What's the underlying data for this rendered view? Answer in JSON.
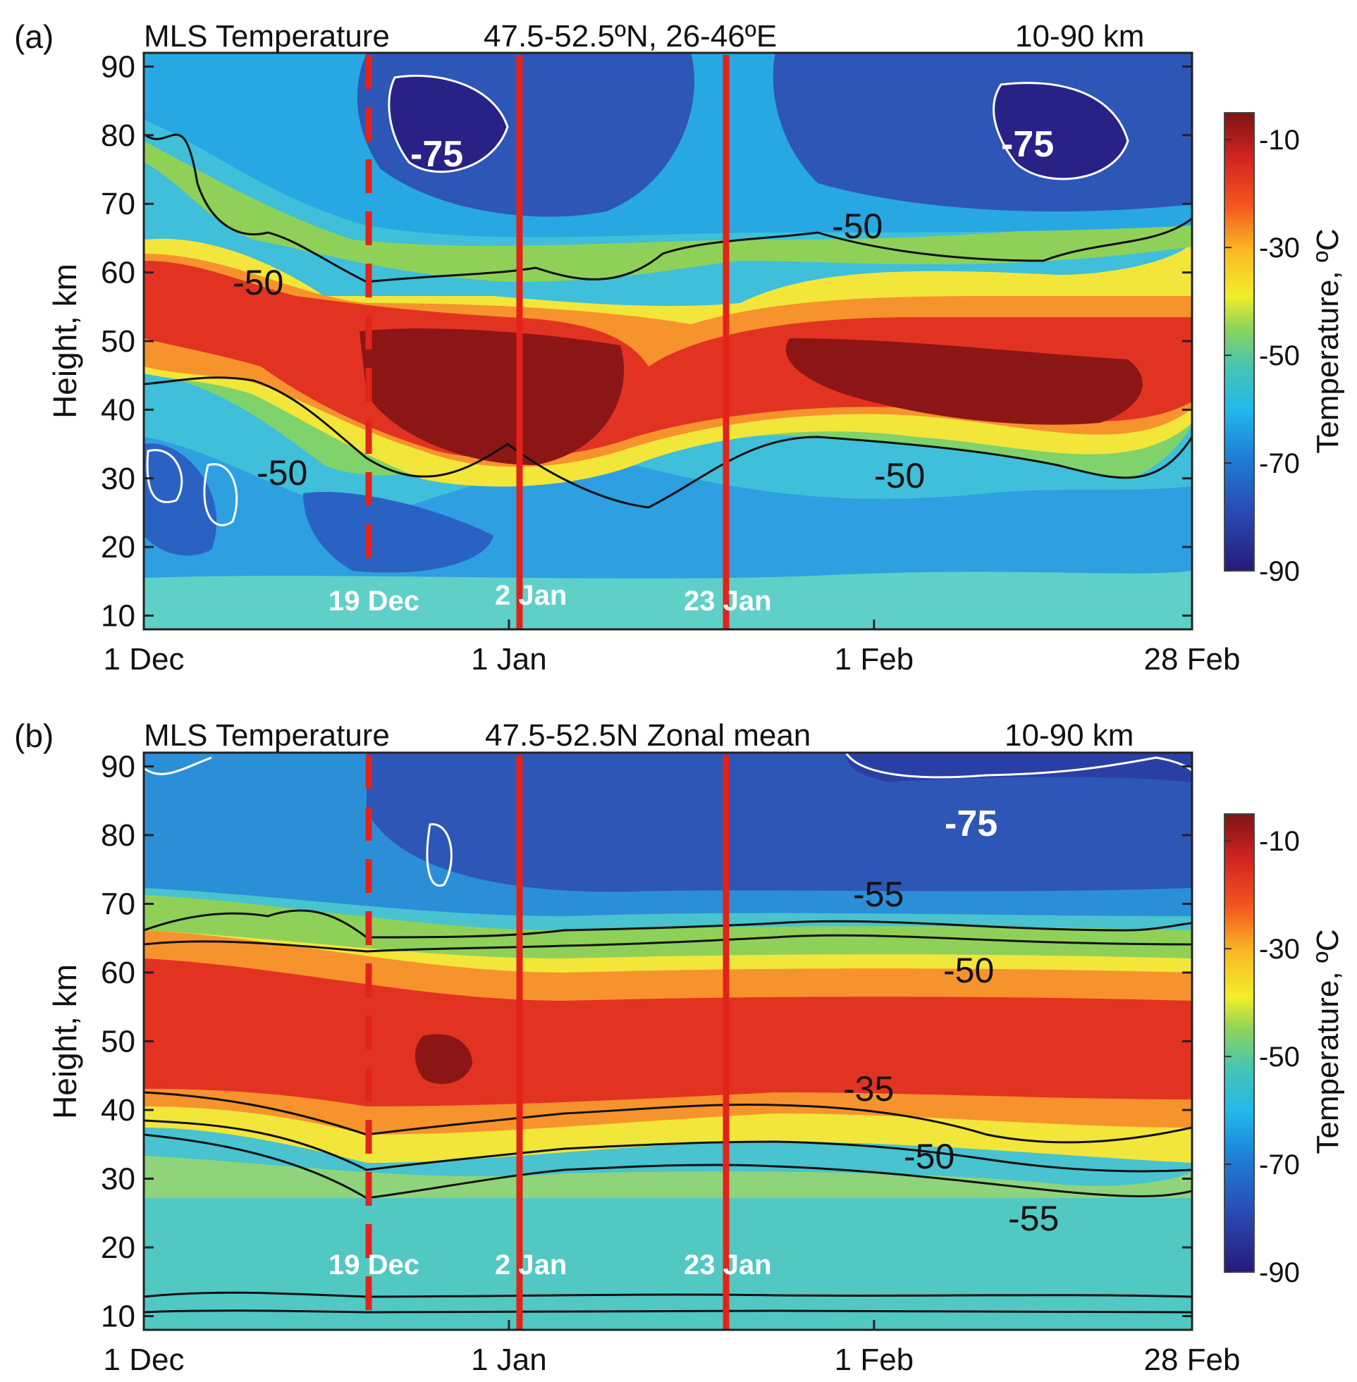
{
  "chart_data": [
    {
      "type": "heatmap",
      "panel_label": "(a)",
      "title_left": "MLS Temperature",
      "title_mid": "47.5-52.5ºN, 26-46ºE",
      "title_right": "10-90 km",
      "ylabel": "Height, km",
      "yticks": [
        "10",
        "20",
        "30",
        "40",
        "50",
        "60",
        "70",
        "80",
        "90"
      ],
      "xticks": [
        "1 Dec",
        "1 Jan",
        "1 Feb",
        "28 Feb"
      ],
      "ylim": [
        8,
        92
      ],
      "colorbar": {
        "label": "Temperature, ºC",
        "ticks": [
          "-10",
          "-30",
          "-50",
          "-70",
          "-90"
        ],
        "range": [
          -90,
          -5
        ]
      },
      "contour_labels": [
        {
          "text": "-50",
          "color": "black"
        },
        {
          "text": "-50",
          "color": "black"
        },
        {
          "text": "-50",
          "color": "black"
        },
        {
          "text": "-50",
          "color": "black"
        },
        {
          "text": "-75",
          "color": "white"
        },
        {
          "text": "-75",
          "color": "white"
        }
      ],
      "event_lines": [
        {
          "label": "19 Dec",
          "day": 18,
          "style": "dashed"
        },
        {
          "label": "2 Jan",
          "day": 32,
          "style": "solid"
        },
        {
          "label": "23 Jan",
          "day": 53,
          "style": "solid"
        }
      ],
      "summary": "Warm stratopause band (-10 to -30 ºC) at 40-55 km, shifting lower (35-50 km) after 19 Dec; cold mesosphere (-75 ºC and below) above 70 km; -50 ºC contours bound the warm layer."
    },
    {
      "type": "heatmap",
      "panel_label": "(b)",
      "title_left": "MLS Temperature",
      "title_mid": "47.5-52.5N  Zonal mean",
      "title_right": "10-90 km",
      "ylabel": "Height, km",
      "yticks": [
        "10",
        "20",
        "30",
        "40",
        "50",
        "60",
        "70",
        "80",
        "90"
      ],
      "xticks": [
        "1 Dec",
        "1 Jan",
        "1 Feb",
        "28 Feb"
      ],
      "ylim": [
        8,
        92
      ],
      "colorbar": {
        "label": "Temperature, ºC",
        "ticks": [
          "-10",
          "-30",
          "-50",
          "-70",
          "-90"
        ],
        "range": [
          -90,
          -5
        ]
      },
      "contour_labels": [
        {
          "text": "-75",
          "color": "white"
        },
        {
          "text": "-55",
          "color": "black"
        },
        {
          "text": "-50",
          "color": "black"
        },
        {
          "text": "-35",
          "color": "black"
        },
        {
          "text": "-50",
          "color": "black"
        },
        {
          "text": "-55",
          "color": "black"
        }
      ],
      "event_lines": [
        {
          "label": "19 Dec",
          "day": 18,
          "style": "dashed"
        },
        {
          "label": "2 Jan",
          "day": 32,
          "style": "solid"
        },
        {
          "label": "23 Jan",
          "day": 53,
          "style": "solid"
        }
      ],
      "summary": "Zonal-mean warm layer (-20 to -35 ºC) centered near 48 km; -50/-55 ºC contours near 30-35 km and 55-65 km; -75 ºC near top after 1 Feb."
    }
  ]
}
